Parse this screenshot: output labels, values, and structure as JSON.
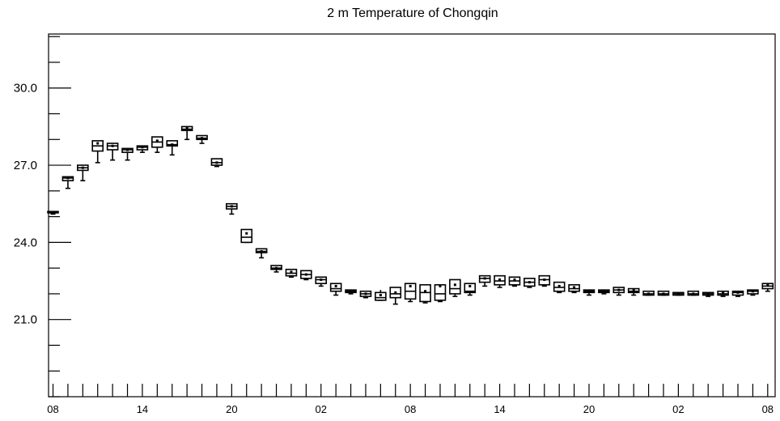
{
  "chart_data": {
    "type": "box",
    "title": "2 m Temperature of Chongqin",
    "xlabel": "",
    "ylabel": "",
    "ylim": [
      18.0,
      32.1
    ],
    "yticks": [
      "21.0",
      "24.0",
      "27.0",
      "30.0"
    ],
    "y_major_values": [
      21.0,
      24.0,
      27.0,
      30.0
    ],
    "y_minor_step": 1.0,
    "xlim": [
      -0.3,
      48.5
    ],
    "xticks": [
      {
        "pos": 0,
        "label": "08"
      },
      {
        "pos": 6,
        "label": "14"
      },
      {
        "pos": 12,
        "label": "20"
      },
      {
        "pos": 18,
        "label": "02"
      },
      {
        "pos": 24,
        "label": "08"
      },
      {
        "pos": 30,
        "label": "14"
      },
      {
        "pos": 36,
        "label": "20"
      },
      {
        "pos": 42,
        "label": "02"
      },
      {
        "pos": 48,
        "label": "08"
      }
    ],
    "grid": false,
    "boxes": [
      {
        "x": 0,
        "min": 25.1,
        "q1": 25.15,
        "median": 25.15,
        "q3": 25.2,
        "max": 25.2,
        "mean": 25.15
      },
      {
        "x": 1,
        "min": 26.1,
        "q1": 26.4,
        "median": 26.5,
        "q3": 26.55,
        "max": 26.55,
        "mean": 26.5
      },
      {
        "x": 2,
        "min": 26.4,
        "q1": 26.8,
        "median": 26.9,
        "q3": 27.0,
        "max": 27.0,
        "mean": 26.9
      },
      {
        "x": 3,
        "min": 27.1,
        "q1": 27.55,
        "median": 27.75,
        "q3": 27.95,
        "max": 27.95,
        "mean": 27.85
      },
      {
        "x": 4,
        "min": 27.2,
        "q1": 27.6,
        "median": 27.75,
        "q3": 27.85,
        "max": 27.85,
        "mean": 27.75
      },
      {
        "x": 5,
        "min": 27.2,
        "q1": 27.5,
        "median": 27.6,
        "q3": 27.65,
        "max": 27.65,
        "mean": 27.6
      },
      {
        "x": 6,
        "min": 27.5,
        "q1": 27.6,
        "median": 27.7,
        "q3": 27.75,
        "max": 27.75,
        "mean": 27.7
      },
      {
        "x": 7,
        "min": 27.5,
        "q1": 27.7,
        "median": 27.9,
        "q3": 28.1,
        "max": 28.1,
        "mean": 27.95
      },
      {
        "x": 8,
        "min": 27.4,
        "q1": 27.75,
        "median": 27.8,
        "q3": 27.95,
        "max": 27.95,
        "mean": 27.8
      },
      {
        "x": 9,
        "min": 28.0,
        "q1": 28.35,
        "median": 28.4,
        "q3": 28.5,
        "max": 28.5,
        "mean": 28.45
      },
      {
        "x": 10,
        "min": 27.85,
        "q1": 28.0,
        "median": 28.05,
        "q3": 28.15,
        "max": 28.15,
        "mean": 28.05
      },
      {
        "x": 11,
        "min": 26.95,
        "q1": 27.0,
        "median": 27.1,
        "q3": 27.25,
        "max": 27.25,
        "mean": 27.1
      },
      {
        "x": 12,
        "min": 25.1,
        "q1": 25.3,
        "median": 25.4,
        "q3": 25.5,
        "max": 25.5,
        "mean": 25.4
      },
      {
        "x": 13,
        "min": 24.0,
        "q1": 24.0,
        "median": 24.2,
        "q3": 24.5,
        "max": 24.5,
        "mean": 24.35
      },
      {
        "x": 14,
        "min": 23.4,
        "q1": 23.6,
        "median": 23.65,
        "q3": 23.75,
        "max": 23.75,
        "mean": 23.65
      },
      {
        "x": 15,
        "min": 22.85,
        "q1": 22.95,
        "median": 23.0,
        "q3": 23.1,
        "max": 23.1,
        "mean": 23.0
      },
      {
        "x": 16,
        "min": 22.65,
        "q1": 22.7,
        "median": 22.8,
        "q3": 22.95,
        "max": 22.95,
        "mean": 22.85
      },
      {
        "x": 17,
        "min": 22.55,
        "q1": 22.6,
        "median": 22.75,
        "q3": 22.9,
        "max": 22.9,
        "mean": 22.75
      },
      {
        "x": 18,
        "min": 22.3,
        "q1": 22.4,
        "median": 22.55,
        "q3": 22.65,
        "max": 22.65,
        "mean": 22.55
      },
      {
        "x": 19,
        "min": 21.95,
        "q1": 22.1,
        "median": 22.2,
        "q3": 22.4,
        "max": 22.4,
        "mean": 22.3
      },
      {
        "x": 20,
        "min": 22.0,
        "q1": 22.05,
        "median": 22.1,
        "q3": 22.15,
        "max": 22.15,
        "mean": 22.1
      },
      {
        "x": 21,
        "min": 21.85,
        "q1": 21.9,
        "median": 22.0,
        "q3": 22.1,
        "max": 22.1,
        "mean": 22.0
      },
      {
        "x": 22,
        "min": 21.75,
        "q1": 21.75,
        "median": 21.85,
        "q3": 22.05,
        "max": 22.15,
        "mean": 21.95
      },
      {
        "x": 23,
        "min": 21.6,
        "q1": 21.85,
        "median": 22.0,
        "q3": 22.25,
        "max": 22.25,
        "mean": 22.05
      },
      {
        "x": 24,
        "min": 21.7,
        "q1": 21.8,
        "median": 22.1,
        "q3": 22.4,
        "max": 22.4,
        "mean": 22.3
      },
      {
        "x": 25,
        "min": 21.65,
        "q1": 21.7,
        "median": 22.05,
        "q3": 22.35,
        "max": 22.35,
        "mean": 22.1
      },
      {
        "x": 26,
        "min": 21.7,
        "q1": 21.75,
        "median": 22.0,
        "q3": 22.35,
        "max": 22.35,
        "mean": 22.3
      },
      {
        "x": 27,
        "min": 21.9,
        "q1": 22.0,
        "median": 22.2,
        "q3": 22.55,
        "max": 22.55,
        "mean": 22.35
      },
      {
        "x": 28,
        "min": 21.95,
        "q1": 22.05,
        "median": 22.1,
        "q3": 22.4,
        "max": 22.4,
        "mean": 22.3
      },
      {
        "x": 29,
        "min": 22.3,
        "q1": 22.45,
        "median": 22.6,
        "q3": 22.7,
        "max": 22.7,
        "mean": 22.6
      },
      {
        "x": 30,
        "min": 22.25,
        "q1": 22.35,
        "median": 22.5,
        "q3": 22.7,
        "max": 22.7,
        "mean": 22.55
      },
      {
        "x": 31,
        "min": 22.3,
        "q1": 22.35,
        "median": 22.5,
        "q3": 22.65,
        "max": 22.65,
        "mean": 22.55
      },
      {
        "x": 32,
        "min": 22.25,
        "q1": 22.3,
        "median": 22.45,
        "q3": 22.6,
        "max": 22.6,
        "mean": 22.45
      },
      {
        "x": 33,
        "min": 22.3,
        "q1": 22.35,
        "median": 22.55,
        "q3": 22.7,
        "max": 22.7,
        "mean": 22.55
      },
      {
        "x": 34,
        "min": 22.05,
        "q1": 22.1,
        "median": 22.25,
        "q3": 22.45,
        "max": 22.45,
        "mean": 22.3
      },
      {
        "x": 35,
        "min": 22.05,
        "q1": 22.1,
        "median": 22.2,
        "q3": 22.35,
        "max": 22.35,
        "mean": 22.25
      },
      {
        "x": 36,
        "min": 21.95,
        "q1": 22.05,
        "median": 22.1,
        "q3": 22.15,
        "max": 22.15,
        "mean": 22.1
      },
      {
        "x": 37,
        "min": 22.0,
        "q1": 22.05,
        "median": 22.1,
        "q3": 22.15,
        "max": 22.15,
        "mean": 22.1
      },
      {
        "x": 38,
        "min": 21.95,
        "q1": 22.05,
        "median": 22.15,
        "q3": 22.25,
        "max": 22.25,
        "mean": 22.15
      },
      {
        "x": 39,
        "min": 21.95,
        "q1": 22.05,
        "median": 22.1,
        "q3": 22.2,
        "max": 22.2,
        "mean": 22.15
      },
      {
        "x": 40,
        "min": 21.95,
        "q1": 21.95,
        "median": 22.0,
        "q3": 22.1,
        "max": 22.1,
        "mean": 22.0
      },
      {
        "x": 41,
        "min": 21.95,
        "q1": 21.95,
        "median": 22.0,
        "q3": 22.1,
        "max": 22.1,
        "mean": 22.0
      },
      {
        "x": 42,
        "min": 21.95,
        "q1": 21.95,
        "median": 22.0,
        "q3": 22.05,
        "max": 22.05,
        "mean": 22.0
      },
      {
        "x": 43,
        "min": 21.95,
        "q1": 21.95,
        "median": 22.0,
        "q3": 22.1,
        "max": 22.1,
        "mean": 22.0
      },
      {
        "x": 44,
        "min": 21.9,
        "q1": 21.95,
        "median": 22.0,
        "q3": 22.05,
        "max": 22.05,
        "mean": 22.0
      },
      {
        "x": 45,
        "min": 21.9,
        "q1": 21.95,
        "median": 22.0,
        "q3": 22.1,
        "max": 22.1,
        "mean": 22.05
      },
      {
        "x": 46,
        "min": 21.9,
        "q1": 21.95,
        "median": 22.05,
        "q3": 22.1,
        "max": 22.1,
        "mean": 22.05
      },
      {
        "x": 47,
        "min": 21.95,
        "q1": 22.0,
        "median": 22.1,
        "q3": 22.15,
        "max": 22.15,
        "mean": 22.1
      },
      {
        "x": 48,
        "min": 22.1,
        "q1": 22.2,
        "median": 22.3,
        "q3": 22.4,
        "max": 22.4,
        "mean": 22.35
      }
    ]
  }
}
